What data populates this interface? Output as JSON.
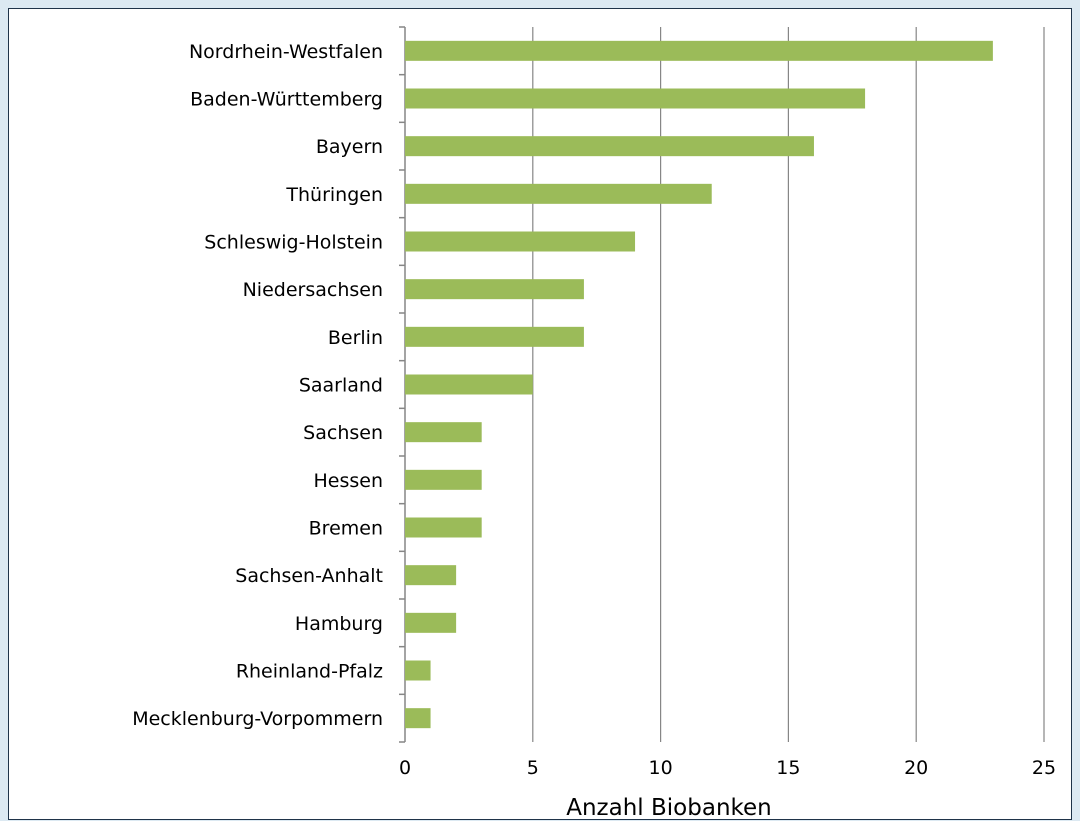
{
  "chart_data": {
    "type": "bar",
    "orientation": "horizontal",
    "categories": [
      "Nordrhein-Westfalen",
      "Baden-Württemberg",
      "Bayern",
      "Thüringen",
      "Schleswig-Holstein",
      "Niedersachsen",
      "Berlin",
      "Saarland",
      "Sachsen",
      "Hessen",
      "Bremen",
      "Sachsen-Anhalt",
      "Hamburg",
      "Rheinland-Pfalz",
      "Mecklenburg-Vorpommern"
    ],
    "values": [
      23,
      18,
      16,
      12,
      9,
      7,
      7,
      5,
      3,
      3,
      3,
      2,
      2,
      1,
      1
    ],
    "xlabel": "Anzahl Biobanken",
    "ylabel": "",
    "xlim": [
      0,
      25
    ],
    "xticks": [
      0,
      5,
      10,
      15,
      20,
      25
    ],
    "grid": "vertical",
    "legend": "none",
    "bar_color": "#9bbb59",
    "grid_color": "#868686"
  }
}
